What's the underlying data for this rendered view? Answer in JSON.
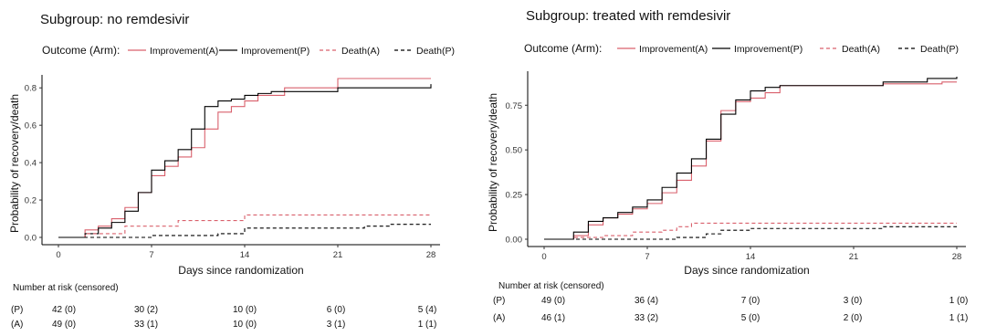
{
  "legend": {
    "title": "Outcome (Arm):",
    "entries": [
      {
        "label": "Improvement(A)",
        "color": "#d9606c",
        "dash": "solid"
      },
      {
        "label": "Improvement(P)",
        "color": "#000000",
        "dash": "solid"
      },
      {
        "label": "Death(A)",
        "color": "#d9606c",
        "dash": "dashed"
      },
      {
        "label": "Death(P)",
        "color": "#000000",
        "dash": "dashed"
      }
    ]
  },
  "risk_table_title": "Number at risk (censored)",
  "chart_data": [
    {
      "type": "line",
      "step": true,
      "title": "Subgroup: no remdesivir",
      "xlabel": "Days since randomization",
      "ylabel": "Probability of recovery/death",
      "xlim": [
        0,
        28
      ],
      "ylim": [
        0,
        0.85
      ],
      "xticks": [
        "0",
        "7",
        "14",
        "21",
        "28"
      ],
      "xtick_values": [
        0,
        7,
        14,
        21,
        28
      ],
      "yticks": [
        "0.0",
        "0.2",
        "0.4",
        "0.6",
        "0.8"
      ],
      "ytick_values": [
        0,
        0.2,
        0.4,
        0.6,
        0.8
      ],
      "grid": false,
      "legend_position": "top",
      "series": [
        {
          "name": "Improvement(A)",
          "color": "#d9606c",
          "dash": "solid",
          "x": [
            0,
            2,
            3,
            4,
            5,
            6,
            7,
            8,
            9,
            10,
            11,
            12,
            13,
            14,
            15,
            17,
            21,
            28
          ],
          "y": [
            0,
            0.04,
            0.06,
            0.1,
            0.16,
            0.24,
            0.33,
            0.38,
            0.43,
            0.48,
            0.58,
            0.67,
            0.7,
            0.73,
            0.76,
            0.8,
            0.85,
            0.85
          ]
        },
        {
          "name": "Improvement(P)",
          "color": "#000000",
          "dash": "solid",
          "x": [
            0,
            2,
            3,
            4,
            5,
            6,
            7,
            8,
            9,
            10,
            11,
            12,
            13,
            14,
            15,
            16,
            21,
            28
          ],
          "y": [
            0,
            0.02,
            0.05,
            0.08,
            0.14,
            0.24,
            0.36,
            0.41,
            0.47,
            0.58,
            0.7,
            0.73,
            0.74,
            0.76,
            0.77,
            0.78,
            0.8,
            0.82
          ]
        },
        {
          "name": "Death(A)",
          "color": "#d9606c",
          "dash": "dashed",
          "x": [
            0,
            2,
            5,
            9,
            14,
            28
          ],
          "y": [
            0,
            0.02,
            0.06,
            0.09,
            0.12,
            0.12
          ]
        },
        {
          "name": "Death(P)",
          "color": "#000000",
          "dash": "dashed",
          "x": [
            0,
            7,
            12,
            14,
            23,
            25,
            28
          ],
          "y": [
            0,
            0.01,
            0.02,
            0.05,
            0.06,
            0.07,
            0.07
          ]
        }
      ],
      "risk_table": {
        "rows": [
          {
            "arm": "(P)",
            "values": [
              "42 (0)",
              "30 (2)",
              "10 (0)",
              "6 (0)",
              "5 (4)"
            ]
          },
          {
            "arm": "(A)",
            "values": [
              "49 (0)",
              "33 (1)",
              "10 (0)",
              "3 (1)",
              "1 (1)"
            ]
          }
        ]
      }
    },
    {
      "type": "line",
      "step": true,
      "title": "Subgroup: treated with remdesivir",
      "xlabel": "Days since randomization",
      "ylabel": "Probability of recovery/death",
      "xlim": [
        0,
        28
      ],
      "ylim": [
        0,
        0.92
      ],
      "xticks": [
        "0",
        "7",
        "14",
        "21",
        "28"
      ],
      "xtick_values": [
        0,
        7,
        14,
        21,
        28
      ],
      "yticks": [
        "0.00",
        "0.25",
        "0.50",
        "0.75"
      ],
      "ytick_values": [
        0,
        0.25,
        0.5,
        0.75
      ],
      "grid": false,
      "legend_position": "top",
      "series": [
        {
          "name": "Improvement(A)",
          "color": "#d9606c",
          "dash": "solid",
          "x": [
            0,
            2,
            3,
            4,
            5,
            6,
            7,
            8,
            9,
            10,
            11,
            12,
            13,
            14,
            15,
            16,
            23,
            27,
            28
          ],
          "y": [
            0,
            0.02,
            0.08,
            0.12,
            0.14,
            0.17,
            0.2,
            0.26,
            0.33,
            0.41,
            0.55,
            0.72,
            0.77,
            0.79,
            0.82,
            0.86,
            0.87,
            0.88,
            0.88
          ]
        },
        {
          "name": "Improvement(P)",
          "color": "#000000",
          "dash": "solid",
          "x": [
            0,
            2,
            3,
            4,
            5,
            6,
            7,
            8,
            9,
            10,
            11,
            12,
            13,
            14,
            15,
            16,
            23,
            26,
            28
          ],
          "y": [
            0,
            0.04,
            0.1,
            0.12,
            0.15,
            0.18,
            0.22,
            0.29,
            0.37,
            0.45,
            0.56,
            0.7,
            0.78,
            0.83,
            0.85,
            0.86,
            0.88,
            0.9,
            0.91
          ]
        },
        {
          "name": "Death(A)",
          "color": "#d9606c",
          "dash": "dashed",
          "x": [
            0,
            2,
            4,
            6,
            8,
            9,
            10,
            28
          ],
          "y": [
            0,
            0.01,
            0.02,
            0.04,
            0.05,
            0.07,
            0.09,
            0.09
          ]
        },
        {
          "name": "Death(P)",
          "color": "#000000",
          "dash": "dashed",
          "x": [
            0,
            9,
            11,
            12,
            14,
            23,
            28
          ],
          "y": [
            0,
            0.01,
            0.03,
            0.05,
            0.06,
            0.07,
            0.07
          ]
        }
      ],
      "risk_table": {
        "rows": [
          {
            "arm": "(P)",
            "values": [
              "49 (0)",
              "36 (4)",
              "7 (0)",
              "3 (0)",
              "1 (0)"
            ]
          },
          {
            "arm": "(A)",
            "values": [
              "46 (1)",
              "33 (2)",
              "5 (0)",
              "2 (0)",
              "1 (1)"
            ]
          }
        ]
      }
    }
  ]
}
